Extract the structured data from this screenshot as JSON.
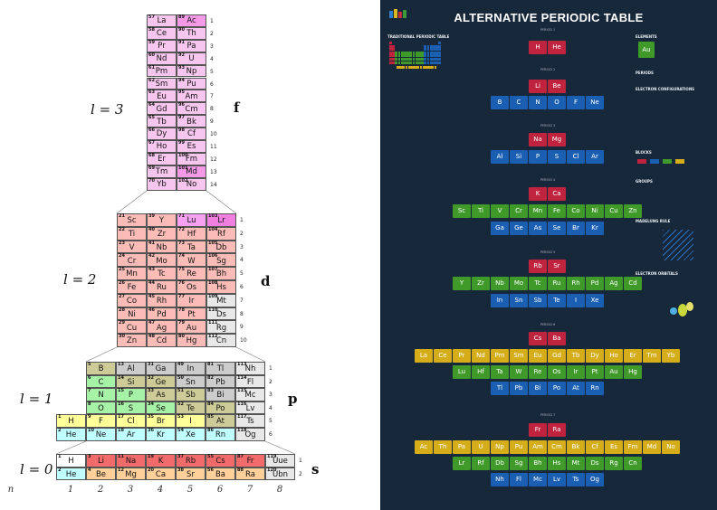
{
  "left": {
    "l_labels": [
      "l = 3",
      "l = 2",
      "l = 1",
      "l = 0"
    ],
    "block_letters": [
      "f",
      "d",
      "p",
      "s"
    ],
    "n_header": "n",
    "n_values": [
      "1",
      "2",
      "3",
      "4",
      "5",
      "6",
      "7",
      "8"
    ],
    "f_block": [
      [
        "57",
        "La"
      ],
      [
        "58",
        "Ce"
      ],
      [
        "59",
        "Pr"
      ],
      [
        "60",
        "Nd"
      ],
      [
        "61",
        "Pm"
      ],
      [
        "62",
        "Sm"
      ],
      [
        "63",
        "Eu"
      ],
      [
        "64",
        "Gd"
      ],
      [
        "65",
        "Tb"
      ],
      [
        "66",
        "Dy"
      ],
      [
        "67",
        "Ho"
      ],
      [
        "68",
        "Er"
      ],
      [
        "69",
        "Tm"
      ],
      [
        "70",
        "Yb"
      ],
      [
        "89",
        "Ac"
      ],
      [
        "90",
        "Th"
      ],
      [
        "91",
        "Pa"
      ],
      [
        "92",
        "U"
      ],
      [
        "93",
        "Np"
      ],
      [
        "94",
        "Pu"
      ],
      [
        "95",
        "Am"
      ],
      [
        "96",
        "Cm"
      ],
      [
        "97",
        "Bk"
      ],
      [
        "98",
        "Cf"
      ],
      [
        "99",
        "Es"
      ],
      [
        "100",
        "Fm"
      ],
      [
        "101",
        "Md"
      ],
      [
        "102",
        "No"
      ]
    ],
    "d_block": [
      [
        "21",
        "Sc"
      ],
      [
        "22",
        "Ti"
      ],
      [
        "23",
        "V"
      ],
      [
        "24",
        "Cr"
      ],
      [
        "25",
        "Mn"
      ],
      [
        "26",
        "Fe"
      ],
      [
        "27",
        "Co"
      ],
      [
        "28",
        "Ni"
      ],
      [
        "29",
        "Cu"
      ],
      [
        "30",
        "Zn"
      ],
      [
        "39",
        "Y"
      ],
      [
        "40",
        "Zr"
      ],
      [
        "41",
        "Nb"
      ],
      [
        "42",
        "Mo"
      ],
      [
        "43",
        "Tc"
      ],
      [
        "44",
        "Ru"
      ],
      [
        "45",
        "Rh"
      ],
      [
        "46",
        "Pd"
      ],
      [
        "47",
        "Ag"
      ],
      [
        "48",
        "Cd"
      ],
      [
        "71",
        "Lu"
      ],
      [
        "72",
        "Hf"
      ],
      [
        "73",
        "Ta"
      ],
      [
        "74",
        "W"
      ],
      [
        "75",
        "Re"
      ],
      [
        "76",
        "Os"
      ],
      [
        "77",
        "Ir"
      ],
      [
        "78",
        "Pt"
      ],
      [
        "79",
        "Au"
      ],
      [
        "80",
        "Hg"
      ],
      [
        "103",
        "Lr"
      ],
      [
        "104",
        "Rf"
      ],
      [
        "105",
        "Db"
      ],
      [
        "106",
        "Sg"
      ],
      [
        "107",
        "Bh"
      ],
      [
        "108",
        "Hs"
      ],
      [
        "109",
        "Mt"
      ],
      [
        "110",
        "Ds"
      ],
      [
        "111",
        "Rg"
      ],
      [
        "112",
        "Cn"
      ]
    ],
    "p_block": [
      [
        "5",
        "B"
      ],
      [
        "6",
        "C"
      ],
      [
        "7",
        "N"
      ],
      [
        "8",
        "O"
      ],
      [
        "9",
        "F"
      ],
      [
        "10",
        "Ne"
      ],
      [
        "13",
        "Al"
      ],
      [
        "14",
        "Si"
      ],
      [
        "15",
        "P"
      ],
      [
        "16",
        "S"
      ],
      [
        "17",
        "Cl"
      ],
      [
        "18",
        "Ar"
      ],
      [
        "31",
        "Ga"
      ],
      [
        "32",
        "Ge"
      ],
      [
        "33",
        "As"
      ],
      [
        "34",
        "Se"
      ],
      [
        "35",
        "Br"
      ],
      [
        "36",
        "Kr"
      ],
      [
        "49",
        "In"
      ],
      [
        "50",
        "Sn"
      ],
      [
        "51",
        "Sb"
      ],
      [
        "52",
        "Te"
      ],
      [
        "53",
        "I"
      ],
      [
        "54",
        "Xe"
      ],
      [
        "81",
        "Tl"
      ],
      [
        "82",
        "Pb"
      ],
      [
        "83",
        "Bi"
      ],
      [
        "84",
        "Po"
      ],
      [
        "85",
        "At"
      ],
      [
        "86",
        "Rn"
      ],
      [
        "113",
        "Nh"
      ],
      [
        "114",
        "Fl"
      ],
      [
        "115",
        "Mc"
      ],
      [
        "116",
        "Lv"
      ],
      [
        "117",
        "Ts"
      ],
      [
        "118",
        "Og"
      ]
    ],
    "p_first_col": [
      [
        "1",
        "H"
      ],
      [
        "2",
        "He"
      ]
    ],
    "s_block": [
      [
        "1",
        "H"
      ],
      [
        "2",
        "He"
      ],
      [
        "3",
        "Li"
      ],
      [
        "4",
        "Be"
      ],
      [
        "11",
        "Na"
      ],
      [
        "12",
        "Mg"
      ],
      [
        "19",
        "K"
      ],
      [
        "20",
        "Ca"
      ],
      [
        "37",
        "Rb"
      ],
      [
        "38",
        "Sr"
      ],
      [
        "55",
        "Cs"
      ],
      [
        "56",
        "Ba"
      ],
      [
        "87",
        "Fr"
      ],
      [
        "88",
        "Ra"
      ],
      [
        "119",
        "Uue"
      ],
      [
        "120",
        "Ubn"
      ]
    ]
  },
  "poster": {
    "title": "ALTERNATIVE PERIODIC TABLE",
    "period_labels": [
      "PERIOD 1",
      "PERIOD 2",
      "PERIOD 3",
      "PERIOD 4",
      "PERIOD 5",
      "PERIOD 6",
      "PERIOD 7"
    ],
    "sections": [
      "TRADITIONAL PERIODIC TABLE",
      "ELEMENTS",
      "PERIODS",
      "ELECTRON CONFIGURATIONS",
      "BLOCKS",
      "GROUPS",
      "MADELUNG RULE",
      "ELECTRON ORBITALS"
    ],
    "legend_element": "Au",
    "p1": [
      "H",
      "He"
    ],
    "p2": [
      "Li",
      "Be",
      "B",
      "C",
      "N",
      "O",
      "F",
      "Ne"
    ],
    "p3": [
      "Na",
      "Mg",
      "Al",
      "Si",
      "P",
      "S",
      "Cl",
      "Ar"
    ],
    "p4": [
      "K",
      "Ca",
      "Sc",
      "Ti",
      "V",
      "Cr",
      "Mn",
      "Fe",
      "Co",
      "Ni",
      "Cu",
      "Zn",
      "Ga",
      "Ge",
      "As",
      "Se",
      "Br",
      "Kr"
    ],
    "p5": [
      "Rb",
      "Sr",
      "Y",
      "Zr",
      "Nb",
      "Mo",
      "Tc",
      "Ru",
      "Rh",
      "Pd",
      "Ag",
      "Cd",
      "In",
      "Sn",
      "Sb",
      "Te",
      "I",
      "Xe"
    ],
    "p6": [
      "Cs",
      "Ba",
      "La",
      "Ce",
      "Pr",
      "Nd",
      "Pm",
      "Sm",
      "Eu",
      "Gd",
      "Tb",
      "Dy",
      "Ho",
      "Er",
      "Tm",
      "Yb",
      "Lu",
      "Hf",
      "Ta",
      "W",
      "Re",
      "Os",
      "Ir",
      "Pt",
      "Au",
      "Hg",
      "Tl",
      "Pb",
      "Bi",
      "Po",
      "At",
      "Rn"
    ],
    "p7": [
      "Fr",
      "Ra",
      "Ac",
      "Th",
      "Pa",
      "U",
      "Np",
      "Pu",
      "Am",
      "Cm",
      "Bk",
      "Cf",
      "Es",
      "Fm",
      "Md",
      "No",
      "Lr",
      "Rf",
      "Db",
      "Sg",
      "Bh",
      "Hs",
      "Mt",
      "Ds",
      "Rg",
      "Cn",
      "Nh",
      "Fl",
      "Mc",
      "Lv",
      "Ts",
      "Og"
    ],
    "colors": {
      "s": "#c0233d",
      "p": "#1b5fb3",
      "d": "#3f9a2a",
      "f": "#d4ad18"
    }
  },
  "colors": {
    "f": "#f7c6ee",
    "f_alt": "#f399e6",
    "lanth": "#ffb8cc",
    "d": "#fbbcb7",
    "d_head": "#ffd7a8",
    "alkali": "#f26b6b",
    "alkeart": "#ffd09a",
    "metalloid": "#cdcc98",
    "nonmetal": "#a6f2a6",
    "halogen": "#ffff99",
    "noble": "#c0ffff",
    "postmetal": "#cccccc",
    "unknown": "#e8e8e8",
    "hyd": "#ffffff"
  }
}
